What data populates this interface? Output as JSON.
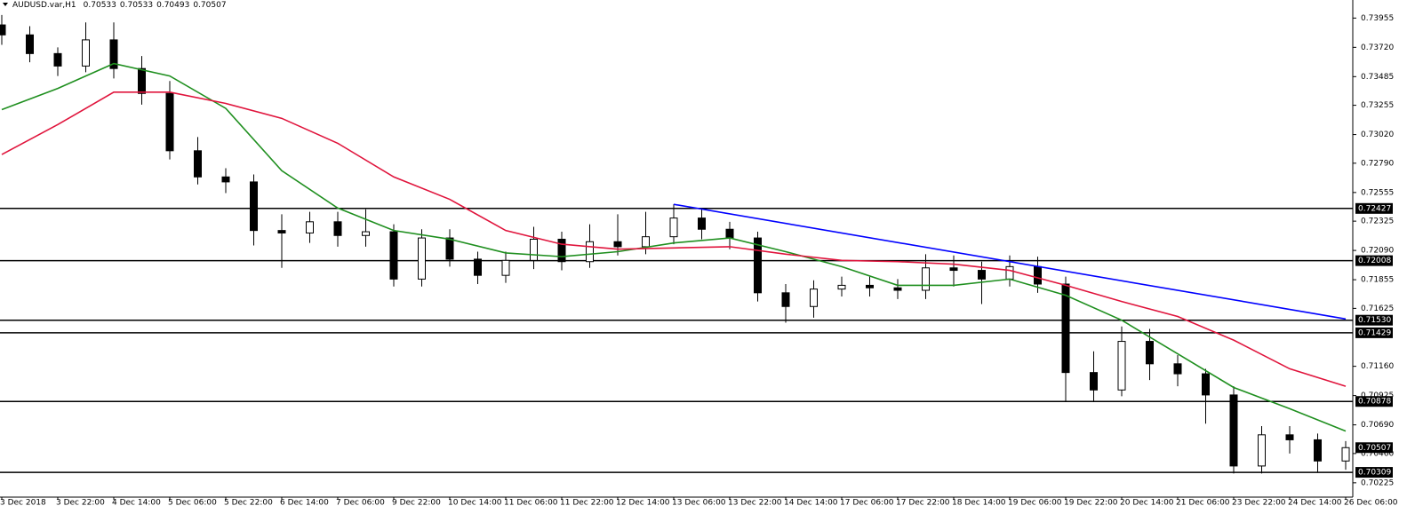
{
  "chart_data": {
    "type": "candlestick",
    "title": "AUDUSD.var,H1",
    "title_values": [
      0.70533,
      0.70533,
      0.70493,
      0.70507
    ],
    "categories": [
      "3 Dec 2018",
      null,
      "3 Dec 22:00",
      null,
      "4 Dec 14:00",
      null,
      "5 Dec 06:00",
      null,
      "5 Dec 22:00",
      null,
      "6 Dec 14:00",
      null,
      "7 Dec 06:00",
      null,
      "9 Dec 22:00",
      null,
      "10 Dec 14:00",
      null,
      "11 Dec 06:00",
      null,
      "11 Dec 22:00",
      null,
      "12 Dec 14:00",
      null,
      "13 Dec 06:00",
      null,
      "13 Dec 22:00",
      null,
      "14 Dec 14:00",
      null,
      "17 Dec 06:00",
      null,
      "17 Dec 22:00",
      null,
      "18 Dec 14:00",
      null,
      "19 Dec 06:00",
      null,
      "19 Dec 22:00",
      null,
      "20 Dec 14:00",
      null,
      "21 Dec 06:00",
      null,
      "23 Dec 22:00",
      null,
      "24 Dec 14:00",
      null,
      "26 Dec 06:00"
    ],
    "ohlc": [
      [
        0.739,
        0.7398,
        0.7374,
        0.7382
      ],
      [
        0.7382,
        0.7389,
        0.736,
        0.7367
      ],
      [
        0.7367,
        0.7372,
        0.7349,
        0.7357
      ],
      [
        0.7357,
        0.7392,
        0.7352,
        0.7378
      ],
      [
        0.7378,
        0.7392,
        0.7347,
        0.7355
      ],
      [
        0.7355,
        0.7365,
        0.7326,
        0.7335
      ],
      [
        0.7335,
        0.7345,
        0.7282,
        0.7289
      ],
      [
        0.7289,
        0.73,
        0.7262,
        0.7268
      ],
      [
        0.7268,
        0.7275,
        0.7255,
        0.7264
      ],
      [
        0.7264,
        0.727,
        0.7213,
        0.7225
      ],
      [
        0.7225,
        0.7238,
        0.7195,
        0.7223
      ],
      [
        0.7223,
        0.724,
        0.7215,
        0.7232
      ],
      [
        0.7232,
        0.724,
        0.7212,
        0.7221
      ],
      [
        0.7221,
        0.7242,
        0.7212,
        0.7224
      ],
      [
        0.7224,
        0.723,
        0.718,
        0.7186
      ],
      [
        0.7186,
        0.7226,
        0.718,
        0.7219
      ],
      [
        0.7219,
        0.7226,
        0.7196,
        0.7202
      ],
      [
        0.7202,
        0.7208,
        0.7182,
        0.7189
      ],
      [
        0.7189,
        0.7208,
        0.7183,
        0.7201
      ],
      [
        0.7201,
        0.7228,
        0.7194,
        0.7218
      ],
      [
        0.7218,
        0.7224,
        0.7193,
        0.72
      ],
      [
        0.72,
        0.723,
        0.7195,
        0.7216
      ],
      [
        0.7216,
        0.7238,
        0.7205,
        0.7212
      ],
      [
        0.7212,
        0.724,
        0.7206,
        0.722
      ],
      [
        0.722,
        0.7246,
        0.7214,
        0.7235
      ],
      [
        0.7235,
        0.7242,
        0.7218,
        0.7226
      ],
      [
        0.7226,
        0.7232,
        0.721,
        0.7219
      ],
      [
        0.7219,
        0.7224,
        0.7168,
        0.7175
      ],
      [
        0.7175,
        0.7182,
        0.7151,
        0.7164
      ],
      [
        0.7164,
        0.7185,
        0.7155,
        0.7178
      ],
      [
        0.7178,
        0.7188,
        0.7172,
        0.7181
      ],
      [
        0.7181,
        0.7188,
        0.7172,
        0.7179
      ],
      [
        0.7179,
        0.7186,
        0.717,
        0.7177
      ],
      [
        0.7177,
        0.7206,
        0.717,
        0.7195
      ],
      [
        0.7195,
        0.7205,
        0.718,
        0.7193
      ],
      [
        0.7193,
        0.72,
        0.7166,
        0.7186
      ],
      [
        0.7186,
        0.7205,
        0.718,
        0.7196
      ],
      [
        0.7196,
        0.7204,
        0.7175,
        0.7182
      ],
      [
        0.7182,
        0.7188,
        0.7088,
        0.7111
      ],
      [
        0.7111,
        0.7128,
        0.7088,
        0.7097
      ],
      [
        0.7097,
        0.7148,
        0.7092,
        0.7136
      ],
      [
        0.7136,
        0.7146,
        0.7105,
        0.7118
      ],
      [
        0.7118,
        0.7125,
        0.71,
        0.711
      ],
      [
        0.711,
        0.7114,
        0.707,
        0.7093
      ],
      [
        0.7093,
        0.71,
        0.703,
        0.7036
      ],
      [
        0.7036,
        0.7068,
        0.703,
        0.7061
      ],
      [
        0.7061,
        0.7068,
        0.7046,
        0.7057
      ],
      [
        0.7057,
        0.7062,
        0.7031,
        0.704
      ],
      [
        0.704,
        0.7056,
        0.7033,
        0.70507
      ]
    ],
    "up_color": "#ffffff",
    "down_color": "#000000",
    "ylim": [
      0.7011,
      0.741
    ],
    "yticks": [
      0.73955,
      {
        "value": 0.7372,
        "label": "0.73720"
      },
      0.73485,
      0.73255,
      {
        "value": 0.7302,
        "label": "0.73020"
      },
      {
        "value": 0.7279,
        "label": "0.72790"
      },
      0.72555,
      0.72325,
      {
        "value": 0.7209,
        "label": "0.72090"
      },
      0.71855,
      0.71625,
      {
        "value": 0.7116,
        "label": "0.71160"
      },
      0.70925,
      {
        "value": 0.7069,
        "label": "0.70690"
      },
      {
        "value": 0.7046,
        "label": "0.70460"
      },
      0.70225
    ],
    "lines": [
      {
        "color": "#1f8f1f",
        "x": [
          0,
          2,
          4,
          6,
          8,
          10,
          12,
          14,
          16,
          18,
          20,
          22,
          24,
          26,
          28,
          30,
          32,
          34,
          36,
          38,
          40,
          42,
          44,
          46,
          48
        ],
        "values": [
          0.7322,
          0.7339,
          0.7359,
          0.7349,
          0.7323,
          0.7273,
          0.7243,
          0.7225,
          0.7218,
          0.7207,
          0.7204,
          0.7208,
          0.7215,
          0.7219,
          0.7208,
          0.7196,
          0.7181,
          0.7181,
          0.7186,
          0.7173,
          0.7153,
          0.7126,
          0.7099,
          0.7082,
          0.7064
        ]
      },
      {
        "color": "#e0143c",
        "x": [
          0,
          2,
          4,
          6,
          8,
          10,
          12,
          14,
          16,
          18,
          20,
          22,
          24,
          26,
          28,
          30,
          32,
          34,
          36,
          38,
          40,
          42,
          44,
          46,
          48
        ],
        "values": [
          0.7286,
          0.731,
          0.7336,
          0.7336,
          0.7327,
          0.7315,
          0.7295,
          0.7268,
          0.725,
          0.7225,
          0.7214,
          0.721,
          0.7211,
          0.7212,
          0.7206,
          0.7201,
          0.72,
          0.7198,
          0.7193,
          0.7181,
          0.7168,
          0.7156,
          0.7137,
          0.7114,
          0.71
        ]
      },
      {
        "color": "#0000ff",
        "x": [
          24,
          48
        ],
        "values": [
          0.7246,
          0.7154
        ]
      }
    ],
    "levels": [
      0.72427,
      0.72008,
      {
        "value": 0.7153,
        "label": "0.71530"
      },
      0.71429,
      0.70878,
      0.70309
    ],
    "bid": 0.70507
  }
}
